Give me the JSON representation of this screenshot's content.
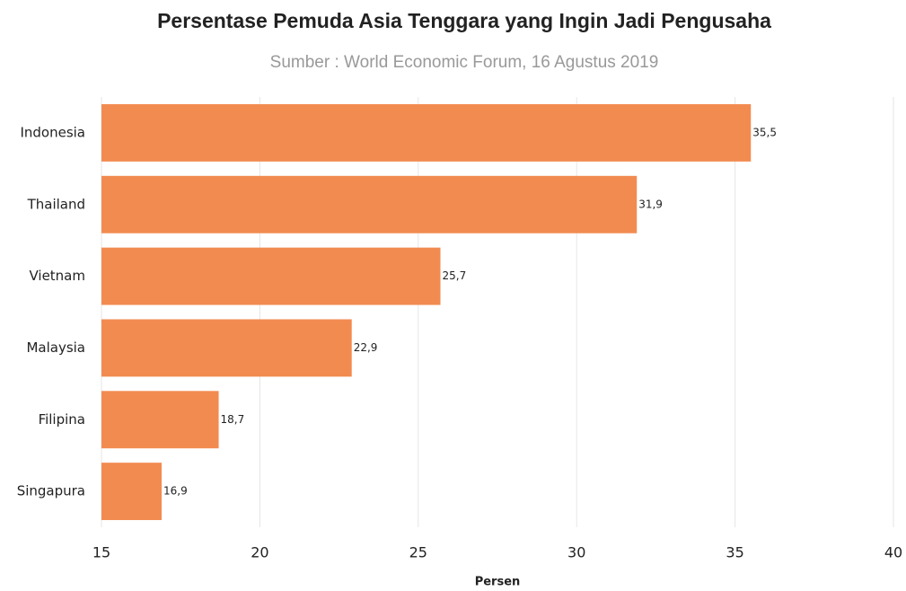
{
  "chart_data": {
    "type": "bar",
    "orientation": "horizontal",
    "title": "Persentase Pemuda Asia Tenggara yang Ingin Jadi Pengusaha",
    "subtitle": "Sumber : World Economic Forum, 16 Agustus 2019",
    "x_label": "Persen",
    "categories": [
      "Indonesia",
      "Thailand",
      "Vietnam",
      "Malaysia",
      "Filipina",
      "Singapura"
    ],
    "values": [
      35.5,
      31.9,
      25.7,
      22.9,
      18.7,
      16.9
    ],
    "value_labels": [
      "35,5",
      "31,9",
      "25,7",
      "22,9",
      "18,7",
      "16,9"
    ],
    "color": "#f28b50",
    "xlim": [
      15,
      40
    ],
    "xticks": [
      15,
      20,
      25,
      30,
      35,
      40
    ],
    "grid": true
  }
}
